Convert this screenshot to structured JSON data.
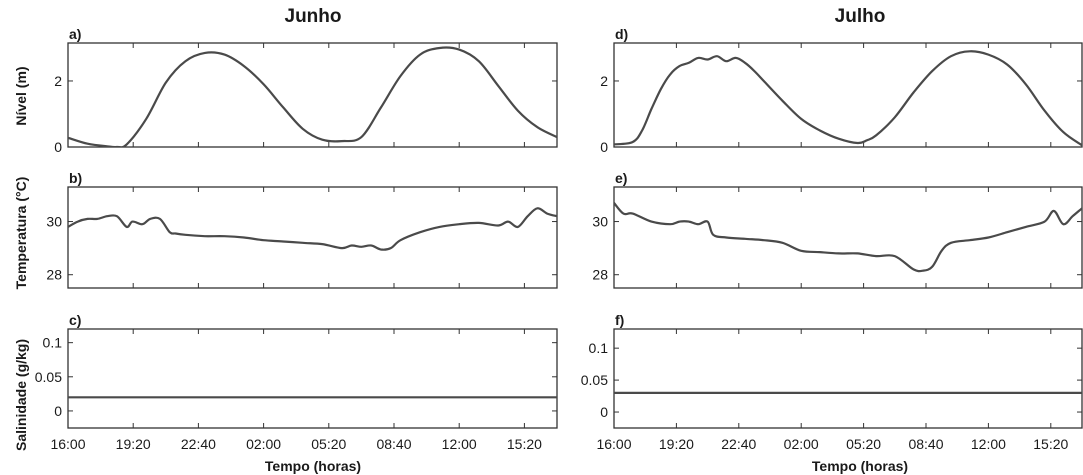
{
  "columns": [
    {
      "title": "Junho"
    },
    {
      "title": "Julho"
    }
  ],
  "xlabel": "Tempo (horas)",
  "ylabels": [
    "Nível (m)",
    "Temperatura (°C)",
    "Salinidade (g/kg)"
  ],
  "x_ticks": [
    "16:00",
    "19:20",
    "22:40",
    "02:00",
    "05:20",
    "08:40",
    "12:00",
    "15:20"
  ],
  "chart_data": [
    {
      "id": "a",
      "panel_label": "a)",
      "column": "Junho",
      "type": "line",
      "ylabel": "Nível (m)",
      "xlabel": "",
      "ylim": [
        0,
        3.15
      ],
      "yticks": [
        0,
        2
      ],
      "x_unit": "hours since 16:00",
      "xlim": [
        0,
        25
      ],
      "series": [
        {
          "x": [
            0,
            1,
            2,
            2.5,
            3,
            4,
            5,
            6,
            7,
            8,
            9,
            10,
            11,
            12,
            13,
            14,
            15,
            16,
            17,
            18,
            19,
            20,
            21,
            22,
            23,
            24,
            25
          ],
          "values": [
            0.28,
            0.1,
            0.02,
            0.0,
            0.08,
            0.85,
            1.95,
            2.6,
            2.85,
            2.8,
            2.45,
            1.9,
            1.2,
            0.55,
            0.22,
            0.18,
            0.3,
            1.2,
            2.15,
            2.8,
            3.0,
            2.95,
            2.6,
            1.85,
            1.1,
            0.6,
            0.3
          ]
        }
      ]
    },
    {
      "id": "b",
      "panel_label": "b)",
      "column": "Junho",
      "type": "line",
      "ylabel": "Temperatura (°C)",
      "xlabel": "",
      "ylim": [
        27.5,
        31.3
      ],
      "yticks": [
        28,
        30
      ],
      "x_unit": "hours since 16:00",
      "xlim": [
        0,
        25
      ],
      "series": [
        {
          "x": [
            0,
            0.5,
            1,
            1.5,
            2,
            2.5,
            3,
            3.3,
            3.8,
            4.2,
            4.7,
            5.2,
            5.5,
            6,
            7,
            8,
            9,
            10,
            11,
            12,
            13,
            14,
            14.5,
            15,
            15.5,
            16,
            16.5,
            17,
            18,
            19,
            20,
            21,
            22,
            22.5,
            23,
            23.5,
            24,
            24.5,
            25
          ],
          "values": [
            29.8,
            30.0,
            30.1,
            30.1,
            30.2,
            30.2,
            29.8,
            30.0,
            29.9,
            30.1,
            30.1,
            29.6,
            29.55,
            29.5,
            29.45,
            29.45,
            29.4,
            29.3,
            29.25,
            29.2,
            29.15,
            29.0,
            29.1,
            29.05,
            29.1,
            28.95,
            29.0,
            29.3,
            29.6,
            29.8,
            29.9,
            29.95,
            29.85,
            30.0,
            29.8,
            30.2,
            30.5,
            30.3,
            30.2
          ]
        }
      ]
    },
    {
      "id": "c",
      "panel_label": "c)",
      "column": "Junho",
      "type": "line",
      "ylabel": "Salinidade (g/kg)",
      "xlabel": "Tempo (horas)",
      "ylim": [
        -0.025,
        0.12
      ],
      "yticks": [
        0,
        0.05,
        0.1
      ],
      "x_unit": "hours since 16:00",
      "xlim": [
        0,
        25
      ],
      "series": [
        {
          "x": [
            0,
            25
          ],
          "values": [
            0.02,
            0.02
          ]
        }
      ]
    },
    {
      "id": "d",
      "panel_label": "d)",
      "column": "Julho",
      "type": "line",
      "ylabel": "",
      "xlabel": "",
      "ylim": [
        0,
        3.15
      ],
      "yticks": [
        0,
        2
      ],
      "x_unit": "hours since 16:00",
      "xlim": [
        0,
        25
      ],
      "series": [
        {
          "x": [
            0,
            1,
            1.5,
            2,
            2.5,
            3,
            3.5,
            4,
            4.5,
            5,
            5.5,
            6,
            6.5,
            7,
            7.5,
            8,
            9,
            10,
            11,
            12,
            13,
            13.5,
            14,
            15,
            16,
            17,
            18,
            19,
            20,
            21,
            22,
            23,
            24,
            25
          ],
          "values": [
            0.08,
            0.15,
            0.5,
            1.15,
            1.75,
            2.2,
            2.45,
            2.55,
            2.7,
            2.65,
            2.75,
            2.6,
            2.7,
            2.55,
            2.3,
            2.0,
            1.4,
            0.85,
            0.5,
            0.25,
            0.12,
            0.2,
            0.35,
            0.9,
            1.65,
            2.3,
            2.75,
            2.9,
            2.8,
            2.5,
            1.9,
            1.1,
            0.45,
            0.05
          ]
        }
      ]
    },
    {
      "id": "e",
      "panel_label": "e)",
      "column": "Julho",
      "type": "line",
      "ylabel": "",
      "xlabel": "",
      "ylim": [
        27.5,
        31.3
      ],
      "yticks": [
        28,
        30
      ],
      "x_unit": "hours since 16:00",
      "xlim": [
        0,
        25
      ],
      "series": [
        {
          "x": [
            0,
            0.5,
            1,
            2,
            3,
            3.5,
            4,
            4.5,
            5,
            5.3,
            6,
            7,
            8,
            9,
            10,
            11,
            12,
            13,
            14,
            15,
            16,
            16.5,
            17,
            17.5,
            18,
            19,
            20,
            21,
            22,
            23,
            23.5,
            24,
            24.5,
            25
          ],
          "values": [
            30.7,
            30.3,
            30.3,
            30.0,
            29.9,
            30.0,
            30.0,
            29.9,
            30.0,
            29.5,
            29.4,
            29.35,
            29.3,
            29.2,
            28.9,
            28.85,
            28.8,
            28.8,
            28.7,
            28.7,
            28.2,
            28.15,
            28.3,
            28.9,
            29.2,
            29.3,
            29.4,
            29.6,
            29.8,
            30.0,
            30.4,
            29.9,
            30.2,
            30.5
          ]
        }
      ]
    },
    {
      "id": "f",
      "panel_label": "f)",
      "column": "Julho",
      "type": "line",
      "ylabel": "",
      "xlabel": "Tempo (horas)",
      "ylim": [
        -0.025,
        0.13
      ],
      "yticks": [
        0,
        0.05,
        0.1
      ],
      "x_unit": "hours since 16:00",
      "xlim": [
        0,
        25
      ],
      "series": [
        {
          "x": [
            0,
            25
          ],
          "values": [
            0.03,
            0.03
          ]
        }
      ]
    }
  ],
  "colors": {
    "line": "#4a4a4a",
    "axes": "#333333",
    "background": "#ffffff"
  }
}
